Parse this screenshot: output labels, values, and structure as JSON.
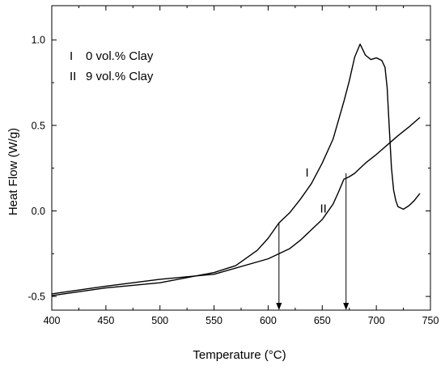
{
  "chart_data": {
    "type": "line",
    "title": "",
    "xlabel": "Temperature (°C)",
    "ylabel": "Heat Flow (W/g)",
    "xlim": [
      400,
      750
    ],
    "ylim": [
      -0.58,
      1.2
    ],
    "x_ticks": [
      400,
      450,
      500,
      550,
      600,
      650,
      700,
      750
    ],
    "x_tick_labels": [
      "400",
      "450",
      "500",
      "550",
      "600",
      "650",
      "700",
      "750"
    ],
    "y_ticks": [
      -0.5,
      0.0,
      0.5,
      1.0
    ],
    "y_tick_labels": [
      "-0.5",
      "0.0",
      "0.5",
      "1.0"
    ],
    "grid": false,
    "legend": {
      "placement": "top-left",
      "entries": [
        {
          "id": "I",
          "text": "0 vol.% Clay"
        },
        {
          "id": "II",
          "text": "9 vol.% Clay"
        }
      ]
    },
    "series": [
      {
        "name": "I",
        "x": [
          400,
          450,
          500,
          550,
          570,
          590,
          600,
          610,
          620,
          630,
          640,
          650,
          660,
          670,
          675,
          680,
          685,
          690,
          695,
          700,
          705,
          708,
          710,
          712,
          714,
          716,
          718,
          720,
          725,
          730,
          735,
          740
        ],
        "y": [
          -0.495,
          -0.45,
          -0.42,
          -0.36,
          -0.32,
          -0.23,
          -0.16,
          -0.07,
          -0.01,
          0.07,
          0.16,
          0.28,
          0.42,
          0.64,
          0.76,
          0.9,
          0.975,
          0.91,
          0.885,
          0.895,
          0.88,
          0.84,
          0.72,
          0.48,
          0.25,
          0.12,
          0.06,
          0.025,
          0.01,
          0.03,
          0.06,
          0.1
        ]
      },
      {
        "name": "II",
        "x": [
          400,
          450,
          500,
          550,
          600,
          620,
          630,
          640,
          650,
          660,
          665,
          670,
          675,
          680,
          690,
          700,
          710,
          720,
          730,
          740
        ],
        "y": [
          -0.485,
          -0.44,
          -0.4,
          -0.37,
          -0.28,
          -0.22,
          -0.17,
          -0.11,
          -0.05,
          0.04,
          0.11,
          0.185,
          0.2,
          0.22,
          0.28,
          0.33,
          0.385,
          0.44,
          0.49,
          0.545
        ]
      }
    ],
    "annotations": [
      {
        "type": "label",
        "text": "I",
        "x": 636,
        "y": 0.2
      },
      {
        "type": "label",
        "text": "II",
        "x": 651,
        "y": -0.01
      },
      {
        "type": "arrow",
        "x": 610,
        "y_from": -0.07,
        "y_to": -0.58
      },
      {
        "type": "arrow",
        "x": 672,
        "y_from": 0.22,
        "y_to": -0.58
      }
    ]
  }
}
